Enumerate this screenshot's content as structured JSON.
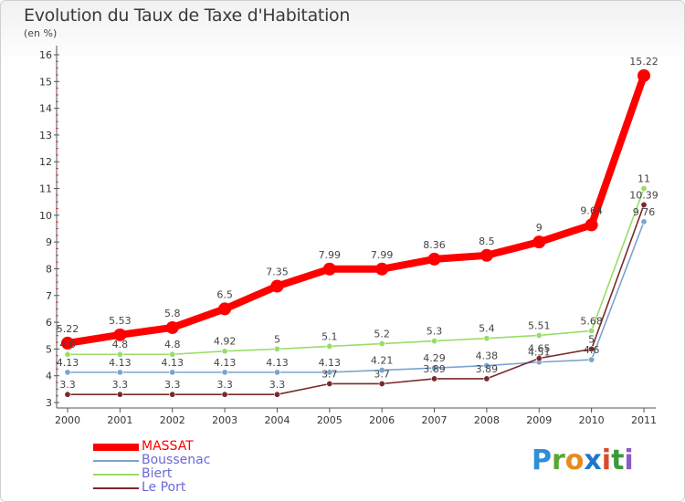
{
  "title": "Evolution du Taux de Taxe d'Habitation",
  "unit": "(en %)",
  "logo": {
    "letters": [
      "P",
      "r",
      "o",
      "x",
      "i",
      "t",
      "i"
    ],
    "colors": [
      "#2f8fd6",
      "#5aa832",
      "#e88b1a",
      "#1e78c8",
      "#d84a2a",
      "#3a9a3a",
      "#8a5cc8"
    ]
  },
  "chart_data": {
    "type": "line",
    "x": [
      "2000",
      "2001",
      "2002",
      "2003",
      "2004",
      "2005",
      "2006",
      "2007",
      "2008",
      "2009",
      "2010",
      "2011"
    ],
    "ylim": [
      3,
      16
    ],
    "yticks": [
      3,
      4,
      5,
      6,
      7,
      8,
      9,
      10,
      11,
      12,
      13,
      14,
      15,
      16
    ],
    "grid": false,
    "legend_position": "bottom-left",
    "series": [
      {
        "name": "MASSAT",
        "color": "#ff0000",
        "values": [
          5.22,
          5.53,
          5.8,
          6.5,
          7.35,
          7.99,
          7.99,
          8.36,
          8.5,
          9,
          9.64,
          15.22
        ],
        "labels": [
          "5.22",
          "5.53",
          "5.8",
          "6.5",
          "7.35",
          "7.99",
          "7.99",
          "8.36",
          "8.5",
          "9",
          "9.64",
          "15.22"
        ]
      },
      {
        "name": "Boussenac",
        "color": "#7aa4cf",
        "values": [
          4.13,
          4.13,
          4.13,
          4.13,
          4.13,
          4.13,
          4.21,
          4.29,
          4.38,
          4.51,
          4.6,
          9.76
        ],
        "labels": [
          "4.13",
          "4.13",
          "4.13",
          "4.13",
          "4.13",
          "4.13",
          "4.21",
          "4.29",
          "4.38",
          "4.51",
          "4.6",
          "9.76"
        ]
      },
      {
        "name": "Biert",
        "color": "#99dd66",
        "values": [
          4.8,
          4.8,
          4.8,
          4.92,
          5,
          5.1,
          5.2,
          5.3,
          5.4,
          5.51,
          5.68,
          11
        ],
        "labels": [
          "4.8",
          "4.8",
          "4.8",
          "4.92",
          "5",
          "5.1",
          "5.2",
          "5.3",
          "5.4",
          "5.51",
          "5.68",
          "11"
        ]
      },
      {
        "name": "Le Port",
        "color": "#7a2a2a",
        "values": [
          3.3,
          3.3,
          3.3,
          3.3,
          3.3,
          3.7,
          3.7,
          3.89,
          3.89,
          4.65,
          5,
          10.39
        ],
        "labels": [
          "3.3",
          "3.3",
          "3.3",
          "3.3",
          "3.3",
          "3.7",
          "3.7",
          "3.89",
          "3.89",
          "4.65",
          "5",
          "10.39"
        ]
      }
    ]
  }
}
